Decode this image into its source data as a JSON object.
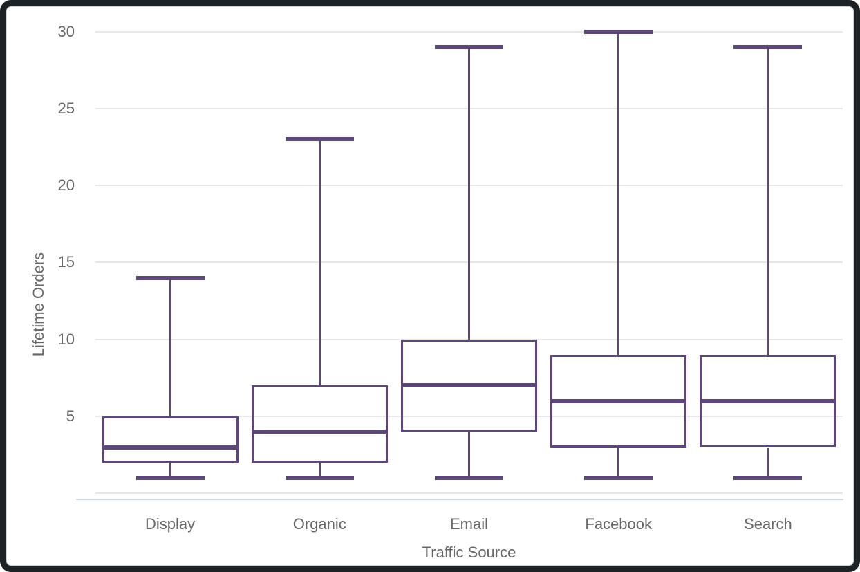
{
  "chart": {
    "y_axis_title": "Lifetime Orders",
    "x_axis_title": "Traffic Source",
    "colors": {
      "box": "#5C4778",
      "gridline": "#E6E6E6",
      "axis_line": "#CCD6EB",
      "text": "#666666",
      "background": "#FFFFFF",
      "frame": "#1D2226"
    }
  },
  "chart_data": {
    "type": "boxplot",
    "title": "",
    "xlabel": "Traffic Source",
    "ylabel": "Lifetime Orders",
    "categories": [
      "Display",
      "Organic",
      "Email",
      "Facebook",
      "Search"
    ],
    "series": [
      {
        "name": "Lifetime Orders",
        "points": [
          {
            "category": "Display",
            "min": 1,
            "q1": 2,
            "median": 3,
            "q3": 5,
            "max": 14
          },
          {
            "category": "Organic",
            "min": 1,
            "q1": 2,
            "median": 4,
            "q3": 7,
            "max": 23
          },
          {
            "category": "Email",
            "min": 1,
            "q1": 4,
            "median": 7,
            "q3": 10,
            "max": 29
          },
          {
            "category": "Facebook",
            "min": 1,
            "q1": 3,
            "median": 6,
            "q3": 9,
            "max": 30
          },
          {
            "category": "Search",
            "min": 1,
            "q1": 3,
            "median": 6,
            "q3": 9,
            "max": 29
          }
        ]
      }
    ],
    "y_ticks": [
      5,
      10,
      15,
      20,
      25,
      30
    ],
    "ylim": [
      0,
      30
    ],
    "grid": true,
    "legend": false
  }
}
